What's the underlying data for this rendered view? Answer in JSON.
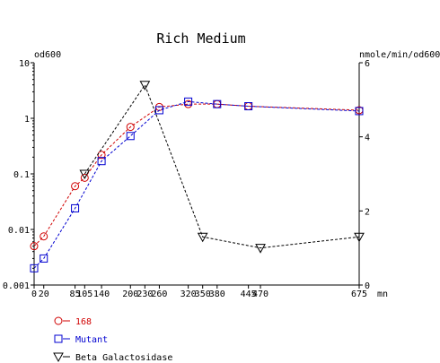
{
  "chart_data": {
    "type": "line",
    "title": "Rich Medium",
    "left_axis_label": "od600",
    "right_axis_label": "nmole/min/od600",
    "x_unit": "mn",
    "x_ticks": [
      0,
      20,
      85,
      105,
      140,
      200,
      230,
      260,
      320,
      350,
      380,
      445,
      470,
      675
    ],
    "x_tick_labels": [
      "0",
      "20",
      "85",
      "105",
      "140",
      "200",
      "230",
      "260",
      "320",
      "350",
      "380",
      "445",
      "470",
      "675"
    ],
    "xlim": [
      0,
      675
    ],
    "y_left_scale": "log",
    "y_left_ticks": [
      0.001,
      0.01,
      0.1,
      1,
      10
    ],
    "y_left_tick_labels": [
      "0.001",
      "0.01",
      "0.1",
      "1",
      "10"
    ],
    "ylim_left": [
      0.001,
      10
    ],
    "y_right_scale": "linear",
    "y_right_ticks": [
      0,
      2,
      4,
      6
    ],
    "y_right_tick_labels": [
      "0",
      "2",
      "4",
      "6"
    ],
    "ylim_right": [
      0,
      6
    ],
    "legend_position": "bottom-left",
    "series": [
      {
        "name": "168",
        "axis": "left",
        "color": "#d00000",
        "marker": "circle",
        "x": [
          0,
          20,
          85,
          105,
          140,
          200,
          260,
          320,
          380,
          445,
          675
        ],
        "y": [
          0.005,
          0.0075,
          0.06,
          0.085,
          0.22,
          0.7,
          1.6,
          1.8,
          1.8,
          1.65,
          1.4
        ]
      },
      {
        "name": "Mutant",
        "axis": "left",
        "color": "#0000d0",
        "marker": "square",
        "x": [
          0,
          20,
          85,
          140,
          200,
          260,
          320,
          380,
          445,
          675
        ],
        "y": [
          0.002,
          0.003,
          0.024,
          0.17,
          0.48,
          1.4,
          2.0,
          1.8,
          1.65,
          1.35
        ]
      },
      {
        "name": "Beta Galactosidase",
        "axis": "right",
        "color": "#000000",
        "marker": "triangle-down",
        "x": [
          105,
          230,
          350,
          470,
          675
        ],
        "y": [
          3,
          5.4,
          1.3,
          1.0,
          1.3
        ]
      }
    ]
  }
}
